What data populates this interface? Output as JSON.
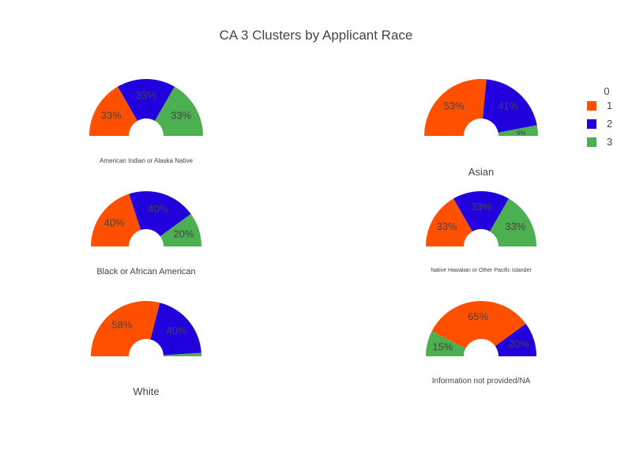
{
  "colors": {
    "1": "#ff5000",
    "2": "#2200dd",
    "3": "#4caf50",
    "text": "#444444"
  },
  "chart_data": {
    "type": "pie",
    "subtype": "semi-donut",
    "title": "CA 3 Clusters by Applicant Race",
    "legend": {
      "placement": "top-right",
      "title": "0",
      "entries": [
        "1",
        "2",
        "3"
      ]
    },
    "categories": [
      "1",
      "2",
      "3"
    ],
    "charts": [
      {
        "label": "American Indian or Alaska Native",
        "values": [
          33.3,
          33.3,
          33.3
        ],
        "labels": [
          "33%",
          "33%",
          "33%"
        ]
      },
      {
        "label": "Asian",
        "values": [
          53,
          41,
          6
        ],
        "labels": [
          "53%",
          "41%",
          "6%"
        ]
      },
      {
        "label": "Black or African American",
        "values": [
          40,
          40,
          20
        ],
        "labels": [
          "40%",
          "40%",
          "20%"
        ]
      },
      {
        "label": "Native Hawaiian or Other Pacific Islander",
        "values": [
          33.3,
          33.3,
          33.3
        ],
        "labels": [
          "33%",
          "33%",
          "33%"
        ]
      },
      {
        "label": "White",
        "values": [
          58,
          40,
          2
        ],
        "labels": [
          "58%",
          "40%",
          ""
        ]
      },
      {
        "label": "Information not provided/NA",
        "values": [
          65,
          20,
          15
        ],
        "labels": [
          "65%",
          "20%",
          "15%"
        ],
        "order": [
          "3",
          "1",
          "2"
        ]
      }
    ]
  }
}
